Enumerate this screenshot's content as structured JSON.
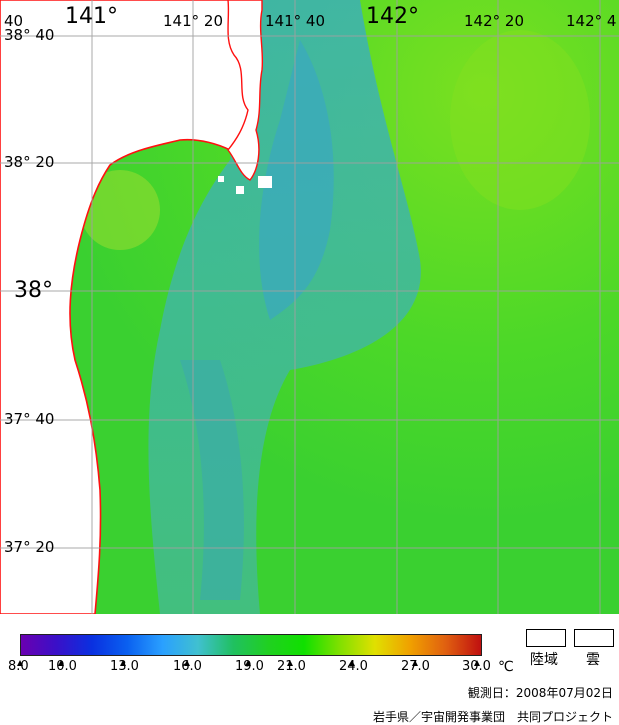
{
  "map": {
    "lon_labels": [
      "141°",
      "141° 20",
      "141° 40",
      "142°",
      "142° 20",
      "142° 4",
      "40"
    ],
    "lat_labels": [
      "38° 40",
      "38° 20",
      "38°",
      "37° 40",
      "37° 20"
    ]
  },
  "legend": {
    "colormap": [
      "#6a00b0",
      "#3a10c8",
      "#0a30e0",
      "#0a60f0",
      "#2aa0ff",
      "#40c0d0",
      "#20c060",
      "#20d020",
      "#10e000",
      "#80e000",
      "#e0e000",
      "#f0a000",
      "#e06010",
      "#c01010"
    ],
    "ticks": [
      "8.0",
      "10.0",
      "13.0",
      "16.0",
      "19.0",
      "21.0",
      "24.0",
      "27.0",
      "30.0"
    ],
    "unit": "℃",
    "land_label": "陸域",
    "cloud_label": "雲"
  },
  "observation": "観測日：2008年07月02日",
  "credit": "岩手県／宇宙開発事業団　共同プロジェクト"
}
